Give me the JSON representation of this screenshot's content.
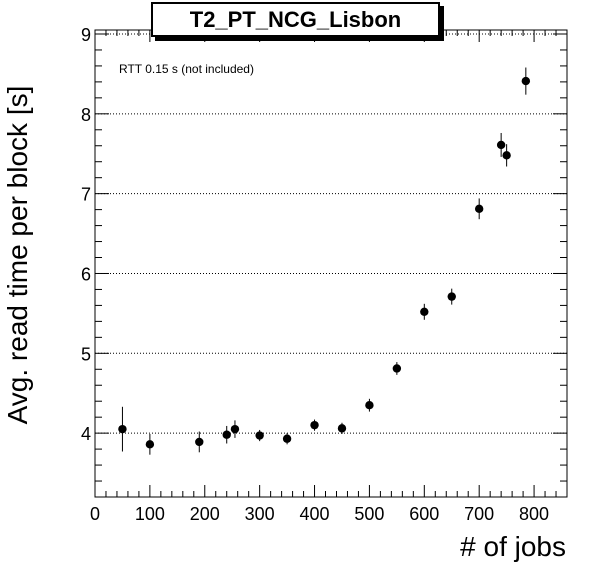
{
  "chart_data": {
    "type": "scatter",
    "title": "T2_PT_NCG_Lisbon",
    "annotation": "RTT 0.15 s (not included)",
    "xlabel": "# of jobs",
    "ylabel": "Avg. read time per block [s]",
    "xlim": [
      0,
      860
    ],
    "ylim": [
      3.2,
      9.05
    ],
    "x_ticks": [
      0,
      100,
      200,
      300,
      400,
      500,
      600,
      700,
      800
    ],
    "y_ticks": [
      4,
      5,
      6,
      7,
      8,
      9
    ],
    "grid": "horizontal dotted",
    "points": [
      {
        "x": 50,
        "y": 4.05,
        "err": 0.28
      },
      {
        "x": 100,
        "y": 3.86,
        "err": 0.13
      },
      {
        "x": 190,
        "y": 3.89,
        "err": 0.13
      },
      {
        "x": 240,
        "y": 3.98,
        "err": 0.11
      },
      {
        "x": 255,
        "y": 4.05,
        "err": 0.11
      },
      {
        "x": 300,
        "y": 3.97,
        "err": 0.07
      },
      {
        "x": 350,
        "y": 3.93,
        "err": 0.07
      },
      {
        "x": 400,
        "y": 4.1,
        "err": 0.07
      },
      {
        "x": 450,
        "y": 4.06,
        "err": 0.07
      },
      {
        "x": 500,
        "y": 4.35,
        "err": 0.08
      },
      {
        "x": 550,
        "y": 4.81,
        "err": 0.08
      },
      {
        "x": 600,
        "y": 5.52,
        "err": 0.1
      },
      {
        "x": 650,
        "y": 5.71,
        "err": 0.1
      },
      {
        "x": 700,
        "y": 6.81,
        "err": 0.13
      },
      {
        "x": 740,
        "y": 7.61,
        "err": 0.15
      },
      {
        "x": 750,
        "y": 7.48,
        "err": 0.14
      },
      {
        "x": 785,
        "y": 8.41,
        "err": 0.17
      }
    ]
  }
}
